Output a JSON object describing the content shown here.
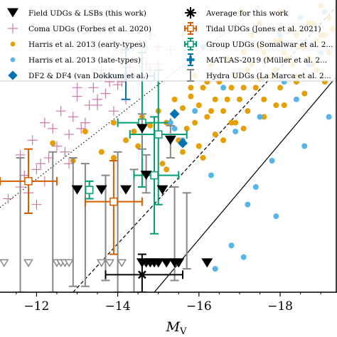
{
  "chart_data": {
    "type": "scatter",
    "xlabel": "M",
    "xlabel_sub": "V",
    "x_ticks": [
      "−12",
      "−14",
      "−16",
      "−18"
    ],
    "x_tick_values": [
      -12,
      -14,
      -16,
      -18
    ],
    "xlim": [
      -11.1,
      -19.4
    ],
    "ylim": [
      0,
      1
    ],
    "y_units": "relative (axis not labeled in crop)",
    "grid": false,
    "legend_placement": "top",
    "legend": [
      {
        "label": "Field UDGs & LSBs (this work)",
        "marker": "triangle-down",
        "color": "#000000"
      },
      {
        "label": "Coma UDGs (Forbes et al. 2020)",
        "marker": "plus",
        "color": "#cc79a7"
      },
      {
        "label": "Harris et al. 2013 (early-types)",
        "marker": "circle",
        "color": "#e69f00"
      },
      {
        "label": "Harris et al. 2013 (late-types)",
        "marker": "circle",
        "color": "#56b4e9"
      },
      {
        "label": "DF2 & DF4 (van Dokkum et al.)",
        "marker": "diamond",
        "color": "#0072b2"
      },
      {
        "label": "Average for this work",
        "marker": "errorbar-x",
        "color": "#000000"
      },
      {
        "label": "Tidal UDGs (Jones et al. 2021)",
        "marker": "errorbar-square",
        "color": "#d55e00"
      },
      {
        "label": "Group UDGs (Somalwar et al. 2...",
        "marker": "errorbar-square",
        "color": "#009e73"
      },
      {
        "label": "MATLAS-2019 (Müller et al. 2...",
        "marker": "errorbar-plus",
        "color": "#0072b2"
      },
      {
        "label": "Hydra UDGs (La Marca et al. 2...",
        "marker": "errorbar",
        "color": "#888888"
      }
    ],
    "reference_lines": [
      {
        "style": "dotted",
        "x1": -11.1,
        "y1": 0.29,
        "x2": -17.5,
        "y2": 0.98
      },
      {
        "style": "dashed",
        "x1": -12.9,
        "y1": 0.0,
        "x2": -19.4,
        "y2": 0.98
      },
      {
        "style": "solid",
        "x1": -14.9,
        "y1": 0.0,
        "x2": -19.4,
        "y2": 0.74
      }
    ],
    "series": [
      {
        "name": "Field UDGs & LSBs (this work)",
        "marker": "triangle-down",
        "color": "#000000",
        "x": [
          -13.0,
          -13.6,
          -14.2,
          -14.7,
          -14.6,
          -15.1,
          -15.3,
          -14.8,
          -14.6,
          -14.7,
          -14.9,
          -15.0,
          -15.2,
          -15.4,
          -15.5,
          -16.2
        ],
        "y": [
          0.35,
          0.35,
          0.35,
          0.4,
          0.56,
          0.35,
          0.52,
          0.1,
          0.1,
          0.1,
          0.1,
          0.1,
          0.1,
          0.1,
          0.1,
          0.1
        ],
        "errors": [
          {
            "ylo": 0.35,
            "yhi": 0.35
          },
          {
            "ylo": 0.35,
            "yhi": 0.35
          },
          {
            "ylo": 0.35,
            "yhi": 0.35
          },
          {
            "ylo": 0.34,
            "yhi": 0.47
          },
          {
            "ylo": 0.49,
            "yhi": 0.61
          },
          {
            "ylo": 0.35,
            "yhi": 0.35
          },
          {
            "ylo": 0.46,
            "yhi": 0.57
          },
          {
            "ylo": 0.1,
            "yhi": 0.1
          },
          {
            "ylo": 0.1,
            "yhi": 0.1
          },
          {
            "ylo": 0.1,
            "yhi": 0.1
          },
          {
            "ylo": 0.1,
            "yhi": 0.1
          },
          {
            "ylo": 0.1,
            "yhi": 0.1
          },
          {
            "ylo": 0.1,
            "yhi": 0.1
          },
          {
            "ylo": 0.1,
            "yhi": 0.1
          },
          {
            "ylo": 0.1,
            "yhi": 0.1
          },
          {
            "ylo": 0.1,
            "yhi": 0.1
          }
        ]
      },
      {
        "name": "Field UDGs & LSBs upper limits (open triangles)",
        "marker": "triangle-down-open",
        "color": "#888888",
        "x": [
          -11.2,
          -11.8,
          -12.5,
          -12.6,
          -12.7,
          -12.8,
          -13.6,
          -13.8,
          -14.1
        ],
        "y": [
          0.1,
          0.1,
          0.1,
          0.1,
          0.1,
          0.1,
          0.1,
          0.1,
          0.1
        ]
      },
      {
        "name": "Coma UDGs (Forbes et al. 2020)",
        "marker": "plus",
        "color": "#cc79a7",
        "x": [
          -11.6,
          -11.9,
          -12.2,
          -12.4,
          -12.6,
          -12.8,
          -13.0,
          -13.2,
          -13.4,
          -13.5,
          -13.6,
          -13.8,
          -13.9,
          -14.0,
          -14.1,
          -14.3,
          -14.4,
          -14.5,
          -14.6,
          -14.7,
          -14.8,
          -15.0,
          -15.3,
          -12.1,
          -12.5,
          -12.9,
          -13.3,
          -13.7,
          -14.1,
          -14.6,
          -11.7,
          -12.3,
          -12.7,
          -13.1,
          -13.5,
          -11.8,
          -12.2,
          -12.0,
          -13.0,
          -14.2,
          -14.8,
          -15.0,
          -15.6,
          -15.9,
          -11.3,
          -11.6,
          -12.0,
          -12.4,
          -12.8,
          -13.9
        ],
        "y": [
          0.47,
          0.52,
          0.58,
          0.56,
          0.62,
          0.54,
          0.67,
          0.58,
          0.7,
          0.64,
          0.76,
          0.72,
          0.8,
          0.71,
          0.82,
          0.77,
          0.74,
          0.9,
          0.84,
          0.78,
          0.88,
          0.84,
          0.83,
          0.44,
          0.5,
          0.6,
          0.64,
          0.68,
          0.72,
          0.8,
          0.4,
          0.46,
          0.48,
          0.56,
          0.66,
          0.34,
          0.38,
          0.3,
          0.7,
          0.66,
          0.76,
          0.78,
          0.88,
          0.96,
          0.32,
          0.36,
          0.42,
          0.38,
          0.44,
          0.62
        ]
      },
      {
        "name": "Harris et al. 2013 (early-types)",
        "marker": "circle",
        "color": "#e69f00",
        "x": [
          -12.4,
          -12.9,
          -13.2,
          -13.6,
          -13.9,
          -14.2,
          -14.4,
          -14.6,
          -14.8,
          -15.0,
          -15.2,
          -15.4,
          -15.6,
          -15.8,
          -16.0,
          -16.1,
          -16.3,
          -16.5,
          -16.7,
          -16.9,
          -17.1,
          -17.3,
          -17.5,
          -17.7,
          -17.9,
          -18.1,
          -18.3,
          -18.5,
          -18.7,
          -18.9,
          -19.1,
          -19.3,
          -15.5,
          -15.7,
          -15.9,
          -16.2,
          -16.4,
          -16.6,
          -16.8,
          -17.0,
          -17.2,
          -17.4,
          -17.6,
          -17.8,
          -18.0,
          -18.2,
          -18.4,
          -18.6,
          -18.8,
          -19.0,
          -19.2,
          -16.0,
          -16.4,
          -16.8,
          -17.2,
          -17.6,
          -18.0,
          -18.4,
          -18.8,
          -19.2,
          -15.2,
          -15.6,
          -16.1,
          -16.6,
          -17.1,
          -17.6,
          -18.1,
          -18.6,
          -19.1,
          -15.9,
          -16.3,
          -16.7,
          -17.1,
          -17.5,
          -17.9,
          -18.3,
          -18.7,
          -19.1,
          -17.0,
          -17.5,
          -18.0,
          -18.5,
          -19.0,
          -13.9,
          -14.5,
          -15.1,
          -15.8,
          -16.2,
          -16.9,
          -17.3,
          -17.9,
          -18.4,
          -18.9
        ],
        "y": [
          0.51,
          0.45,
          0.55,
          0.48,
          0.58,
          0.52,
          0.55,
          0.6,
          0.57,
          0.62,
          0.58,
          0.66,
          0.63,
          0.67,
          0.64,
          0.7,
          0.62,
          0.72,
          0.66,
          0.74,
          0.7,
          0.78,
          0.73,
          0.8,
          0.76,
          0.82,
          0.78,
          0.84,
          0.8,
          0.86,
          0.88,
          0.9,
          0.52,
          0.56,
          0.58,
          0.6,
          0.66,
          0.62,
          0.7,
          0.66,
          0.76,
          0.7,
          0.82,
          0.74,
          0.86,
          0.8,
          0.88,
          0.84,
          0.92,
          0.88,
          0.94,
          0.5,
          0.54,
          0.58,
          0.62,
          0.66,
          0.7,
          0.74,
          0.78,
          0.82,
          0.42,
          0.48,
          0.46,
          0.52,
          0.56,
          0.6,
          0.64,
          0.68,
          0.72,
          0.74,
          0.78,
          0.8,
          0.82,
          0.84,
          0.86,
          0.9,
          0.92,
          0.96,
          0.96,
          0.92,
          0.96,
          0.94,
          0.98,
          0.46,
          0.5,
          0.44,
          0.7,
          0.72,
          0.58,
          0.88,
          0.64,
          0.72,
          0.76
        ]
      },
      {
        "name": "Harris et al. 2013 (late-types)",
        "marker": "circle",
        "color": "#56b4e9",
        "x": [
          -15.3,
          -15.6,
          -15.9,
          -16.3,
          -16.6,
          -16.9,
          -17.2,
          -17.5,
          -17.8,
          -18.1,
          -18.4,
          -18.7,
          -19.0,
          -19.2,
          -16.1,
          -16.8,
          -17.4,
          -18.0,
          -18.6,
          -19.1,
          -17.1,
          -17.9,
          -18.5,
          -16.4,
          -15.4
        ],
        "y": [
          0.58,
          0.52,
          0.62,
          0.4,
          0.7,
          0.55,
          0.3,
          0.6,
          0.45,
          0.72,
          0.66,
          0.78,
          0.82,
          0.6,
          0.84,
          0.16,
          0.36,
          0.88,
          0.5,
          0.96,
          0.12,
          0.26,
          0.94,
          0.08,
          0.56
        ]
      },
      {
        "name": "DF2 & DF4 (van Dokkum et al.)",
        "marker": "diamond",
        "color": "#0072b2",
        "x": [
          -15.4,
          -15.6
        ],
        "y": [
          0.61,
          0.51
        ]
      },
      {
        "name": "Tidal UDGs (Jones et al. 2021)",
        "marker": "errorbar-square",
        "color": "#d55e00",
        "x": [
          -11.8,
          -13.9
        ],
        "y": [
          0.38,
          0.31
        ],
        "errors": [
          {
            "xlo": -11.1,
            "xhi": -12.5,
            "ylo": 0.27,
            "yhi": 0.49
          },
          {
            "xlo": -13.2,
            "xhi": -14.6,
            "ylo": 0.13,
            "yhi": 0.45
          }
        ]
      },
      {
        "name": "Group UDGs (Somalwar et al. 2...",
        "marker": "errorbar-square",
        "color": "#009e73",
        "x": [
          -15.0,
          -14.6,
          -14.9,
          -13.3
        ],
        "y": [
          0.54,
          0.58,
          0.4,
          0.35
        ],
        "errors": [
          {
            "xlo": -14.3,
            "xhi": -15.7,
            "ylo": 0.3,
            "yhi": 0.76
          },
          {
            "xlo": -14.0,
            "xhi": -15.3,
            "ylo": 0.36,
            "yhi": 0.82
          },
          {
            "xlo": -14.4,
            "xhi": -15.5,
            "ylo": 0.2,
            "yhi": 0.6
          },
          {
            "xlo": -13.3,
            "xhi": -13.3,
            "ylo": 0.32,
            "yhi": 0.38
          }
        ]
      },
      {
        "name": "MATLAS-2019 (Müller et al. 2...",
        "marker": "errorbar-plus",
        "color": "#0072b2",
        "x": [
          -14.2
        ],
        "y": [
          0.74
        ],
        "errors": [
          {
            "xlo": -13.6,
            "xhi": -14.9,
            "ylo": 0.66,
            "yhi": 0.83
          }
        ]
      },
      {
        "name": "Hydra UDGs (La Marca et al. 2...",
        "marker": "errorbar",
        "color": "#888888",
        "x": [
          -11.6,
          -12.4,
          -12.9,
          -13.2,
          -13.7,
          -14.0,
          -14.4,
          -15.4,
          -15.7
        ],
        "y": [
          0.22,
          0.25,
          0.2,
          0.24,
          0.2,
          0.22,
          0.18,
          0.2,
          0.22
        ],
        "errors": [
          {
            "ylo": 0.0,
            "yhi": 0.46
          },
          {
            "ylo": 0.0,
            "yhi": 0.48
          },
          {
            "ylo": 0.02,
            "yhi": 0.46
          },
          {
            "ylo": 0.02,
            "yhi": 0.44
          },
          {
            "ylo": 0.04,
            "yhi": 0.4
          },
          {
            "ylo": 0.0,
            "yhi": 0.48
          },
          {
            "ylo": 0.0,
            "yhi": 0.42
          },
          {
            "ylo": 0.04,
            "yhi": 0.36
          },
          {
            "ylo": 0.08,
            "yhi": 0.34
          }
        ]
      },
      {
        "name": "Average for this work",
        "marker": "errorbar-x",
        "color": "#000000",
        "x": [
          -14.6
        ],
        "y": [
          0.06
        ],
        "errors": [
          {
            "xlo": -13.7,
            "xhi": -15.6,
            "ylo": 0.0,
            "yhi": 0.13
          }
        ]
      }
    ]
  }
}
